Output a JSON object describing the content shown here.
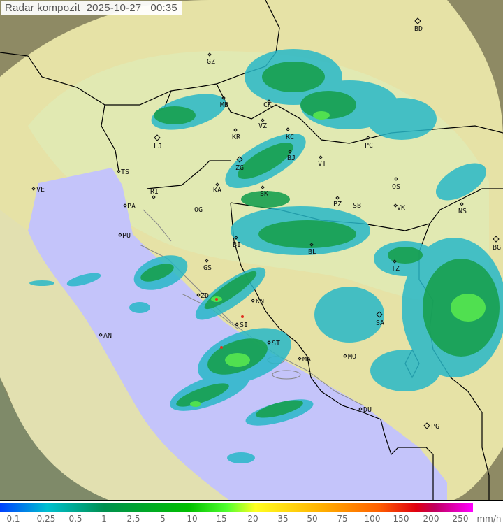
{
  "title": "Radar kompozit  2025-10-27   00:35",
  "colors": {
    "sea": "#c4c4fa",
    "land": "#e8e4a8",
    "outside": "#8e8a64",
    "rain_low": "#20b8c0",
    "rain_mid": "#10a040",
    "rain_high": "#40e040",
    "border": "#000000"
  },
  "cities": [
    "GZ",
    "BD",
    "MB",
    "CK",
    "VZ",
    "KR",
    "KC",
    "LJ",
    "PC",
    "BJ",
    "VT",
    "ZG",
    "TS",
    "VE",
    "RI",
    "KA",
    "SK",
    "OS",
    "PA",
    "PZ",
    "SB",
    "VK",
    "NS",
    "OG",
    "PU",
    "BI",
    "BL",
    "BG",
    "GS",
    "TZ",
    "ZD",
    "KN",
    "SI",
    "SA",
    "AN",
    "ST",
    "MA",
    "MO",
    "DU",
    "PG"
  ],
  "legend": {
    "values": [
      "0,1",
      "0,25",
      "0,5",
      "1",
      "2,5",
      "5",
      "10",
      "15",
      "20",
      "35",
      "50",
      "75",
      "100",
      "150",
      "200",
      "250"
    ],
    "unit": "mm/h"
  }
}
